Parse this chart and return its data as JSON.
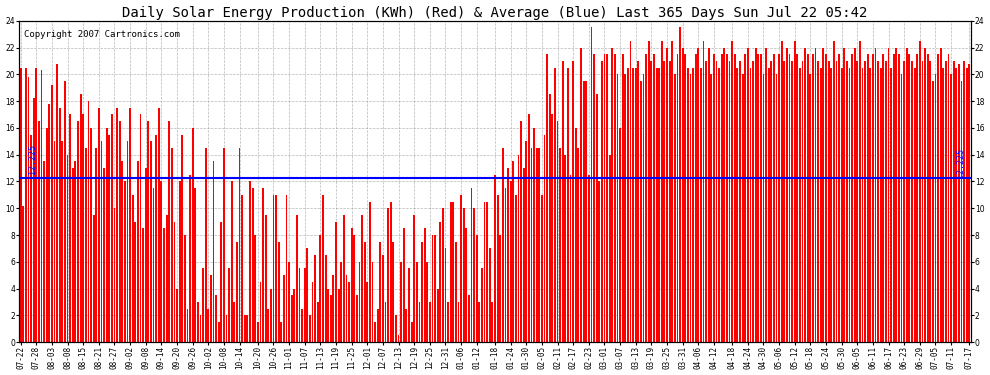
{
  "title": "Daily Solar Energy Production (KWh) (Red) & Average (Blue) Last 365 Days Sun Jul 22 05:42",
  "copyright": "Copyright 2007 Cartronics.com",
  "average_value": 12.225,
  "ylim": [
    0.0,
    24.0
  ],
  "yticks": [
    0.0,
    2.0,
    4.0,
    6.0,
    8.0,
    10.0,
    12.0,
    14.0,
    16.0,
    18.0,
    20.0,
    22.0,
    24.0
  ],
  "bar_color": "#ff0000",
  "avg_line_color": "#0000ff",
  "background_color": "#ffffff",
  "grid_color": "#888888",
  "title_fontsize": 10,
  "copyright_fontsize": 6.5,
  "avg_label_fontsize": 6,
  "tick_label_fontsize": 5.5,
  "x_tick_labels": [
    "07-22",
    "07-28",
    "08-03",
    "08-08",
    "08-15",
    "08-21",
    "08-27",
    "09-02",
    "09-08",
    "09-14",
    "09-20",
    "09-26",
    "10-02",
    "10-08",
    "10-14",
    "10-20",
    "10-26",
    "11-01",
    "11-07",
    "11-13",
    "11-19",
    "11-25",
    "12-01",
    "12-07",
    "12-13",
    "12-19",
    "12-25",
    "12-31",
    "01-06",
    "01-12",
    "01-18",
    "01-24",
    "01-30",
    "02-05",
    "02-11",
    "02-17",
    "02-23",
    "03-01",
    "03-07",
    "03-13",
    "03-19",
    "03-25",
    "03-31",
    "04-06",
    "04-12",
    "04-18",
    "04-24",
    "04-30",
    "05-06",
    "05-12",
    "05-18",
    "05-24",
    "05-30",
    "06-05",
    "06-11",
    "06-17",
    "06-23",
    "06-29",
    "07-05",
    "07-11",
    "07-17"
  ],
  "daily_values": [
    20.5,
    10.2,
    20.5,
    19.8,
    15.5,
    18.2,
    20.5,
    16.5,
    20.3,
    13.5,
    16.0,
    17.8,
    19.2,
    15.0,
    20.8,
    17.5,
    15.0,
    19.5,
    14.0,
    17.0,
    13.0,
    13.5,
    16.5,
    18.5,
    17.0,
    14.5,
    18.0,
    16.0,
    9.5,
    14.5,
    17.5,
    15.0,
    13.0,
    16.0,
    15.5,
    17.0,
    10.0,
    17.5,
    16.5,
    13.5,
    12.0,
    15.0,
    17.5,
    11.0,
    9.0,
    13.5,
    17.0,
    8.5,
    13.0,
    16.5,
    15.0,
    11.5,
    15.5,
    17.5,
    12.0,
    8.5,
    9.5,
    16.5,
    14.5,
    9.0,
    4.0,
    12.0,
    15.5,
    8.0,
    2.5,
    12.5,
    16.0,
    11.5,
    3.0,
    2.0,
    5.5,
    14.5,
    2.5,
    5.0,
    13.5,
    3.5,
    1.5,
    9.0,
    14.5,
    2.0,
    5.5,
    12.0,
    3.0,
    7.5,
    14.5,
    11.0,
    2.0,
    2.0,
    12.0,
    11.5,
    8.0,
    1.5,
    4.5,
    11.5,
    9.5,
    2.5,
    4.0,
    11.0,
    11.0,
    7.5,
    1.5,
    5.0,
    11.0,
    6.0,
    3.5,
    4.0,
    9.5,
    5.5,
    2.5,
    5.5,
    7.0,
    2.0,
    4.5,
    6.5,
    3.0,
    8.0,
    11.0,
    6.5,
    4.0,
    3.5,
    5.0,
    9.0,
    4.0,
    6.0,
    9.5,
    5.0,
    4.5,
    8.5,
    8.0,
    3.5,
    6.0,
    9.5,
    7.5,
    4.5,
    10.5,
    6.0,
    1.5,
    2.5,
    7.5,
    6.5,
    3.0,
    10.0,
    10.5,
    7.5,
    2.0,
    0.5,
    6.0,
    8.5,
    2.5,
    5.5,
    1.5,
    9.5,
    6.0,
    3.0,
    7.5,
    8.5,
    6.0,
    3.0,
    8.0,
    8.0,
    4.0,
    9.0,
    10.0,
    7.0,
    3.0,
    10.5,
    10.5,
    7.5,
    3.0,
    11.0,
    10.0,
    8.5,
    3.5,
    11.5,
    10.0,
    8.0,
    3.0,
    5.5,
    10.5,
    10.5,
    7.0,
    3.0,
    12.5,
    11.0,
    8.0,
    14.5,
    11.5,
    13.0,
    12.0,
    13.5,
    11.0,
    14.0,
    16.5,
    13.0,
    15.0,
    17.0,
    14.5,
    16.0,
    14.5,
    14.5,
    11.0,
    15.5,
    21.5,
    18.5,
    17.0,
    20.5,
    16.5,
    14.5,
    21.0,
    14.0,
    20.5,
    12.5,
    21.0,
    16.0,
    14.5,
    22.0,
    19.5,
    19.5,
    12.5,
    23.5,
    21.5,
    18.5,
    12.0,
    21.0,
    21.5,
    21.5,
    14.0,
    22.0,
    21.5,
    20.0,
    16.0,
    21.5,
    20.0,
    20.5,
    22.5,
    20.5,
    20.5,
    21.0,
    19.5,
    20.0,
    21.5,
    22.5,
    21.0,
    21.5,
    20.5,
    20.5,
    22.5,
    21.0,
    22.0,
    21.0,
    22.5,
    20.0,
    21.5,
    23.5,
    22.0,
    21.5,
    20.5,
    20.0,
    20.5,
    21.5,
    22.0,
    20.5,
    22.5,
    21.0,
    22.0,
    20.0,
    21.5,
    21.0,
    20.5,
    21.5,
    22.0,
    21.5,
    21.0,
    22.5,
    21.5,
    20.5,
    21.0,
    20.0,
    21.5,
    22.0,
    20.5,
    21.0,
    22.0,
    21.5,
    21.5,
    20.0,
    22.0,
    20.5,
    21.0,
    21.5,
    20.0,
    21.5,
    22.5,
    21.0,
    22.0,
    21.5,
    21.0,
    22.5,
    21.5,
    20.5,
    21.0,
    22.0,
    21.5,
    20.0,
    21.5,
    22.0,
    21.0,
    20.5,
    22.0,
    21.5,
    21.0,
    20.5,
    22.5,
    21.0,
    21.5,
    20.5,
    22.0,
    21.0,
    20.5,
    21.5,
    22.0,
    21.0,
    22.5,
    20.5,
    21.0,
    21.5,
    20.5,
    21.5,
    22.0,
    21.0,
    20.5,
    21.5,
    21.0,
    22.0,
    20.5,
    21.5,
    22.0,
    21.5,
    20.0,
    21.0,
    22.0,
    21.5,
    21.0,
    20.5,
    21.5,
    22.5,
    21.0,
    22.0,
    21.5,
    21.0,
    19.5,
    20.0,
    21.5,
    22.0,
    20.5,
    21.0,
    21.5,
    20.0,
    21.0,
    20.5,
    20.8,
    19.5,
    21.0,
    20.5,
    20.8
  ]
}
